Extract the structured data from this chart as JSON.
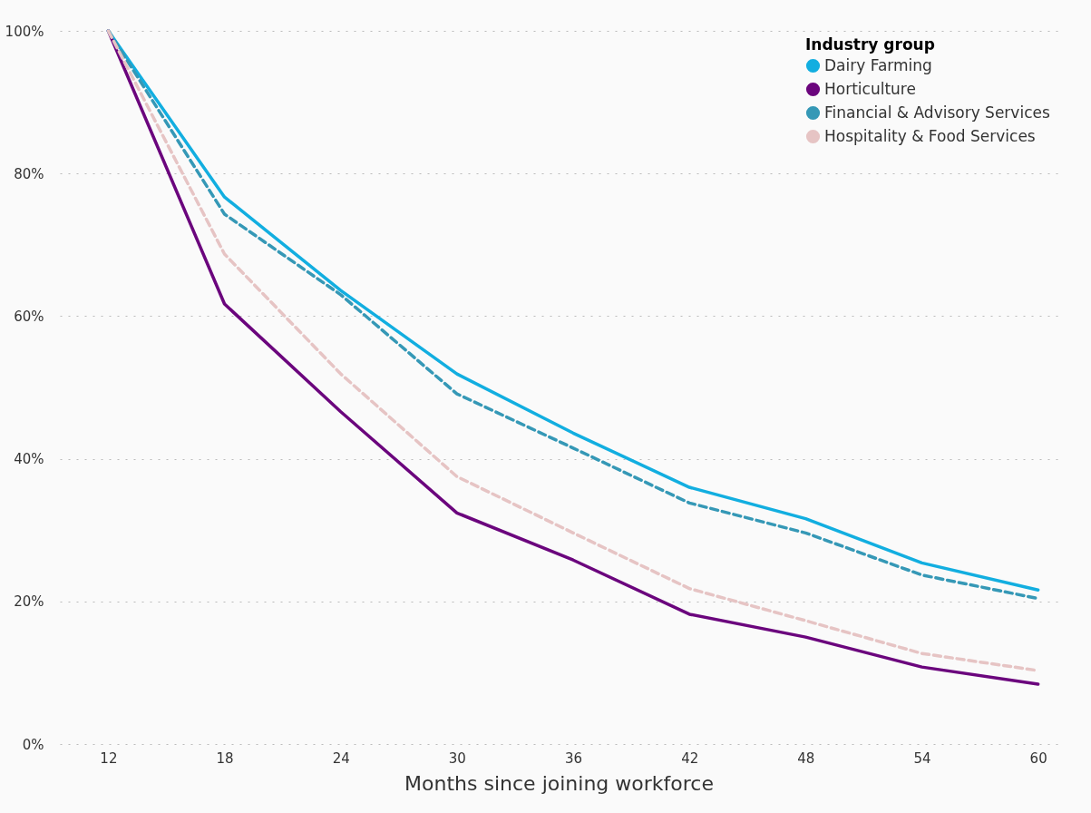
{
  "chart_data": {
    "type": "line",
    "xlabel": "Months since joining workforce",
    "legend_title": "Industry group",
    "legend": "top right",
    "grid": "y",
    "marker": "none",
    "x": [
      12,
      18,
      24,
      30,
      36,
      42,
      48,
      54,
      60
    ],
    "xlim": [
      9.5,
      61
    ],
    "xticks": [
      12,
      18,
      24,
      30,
      36,
      42,
      48,
      54,
      60
    ],
    "ylim": [
      0,
      100
    ],
    "yticks": [
      {
        "value": 0,
        "label": "0%"
      },
      {
        "value": 20,
        "label": "20%"
      },
      {
        "value": 40,
        "label": "40%"
      },
      {
        "value": 60,
        "label": "60%"
      },
      {
        "value": 80,
        "label": "80%"
      },
      {
        "value": 100,
        "label": "100%"
      }
    ],
    "series": [
      {
        "name": "Dairy Farming",
        "color": "#12aee0",
        "line_style": "solid",
        "values": [
          100,
          76.7,
          63.6,
          51.9,
          43.6,
          36.0,
          31.6,
          25.4,
          21.6
        ]
      },
      {
        "name": "Horticulture",
        "color": "#6b057d",
        "line_style": "solid",
        "values": [
          100,
          61.7,
          46.6,
          32.4,
          25.8,
          18.2,
          15.0,
          10.8,
          8.4
        ]
      },
      {
        "name": "Financial & Advisory Services",
        "color": "#3598b6",
        "line_style": "dashed",
        "values": [
          100,
          74.3,
          63.0,
          49.1,
          41.5,
          33.8,
          29.6,
          23.7,
          20.4
        ]
      },
      {
        "name": "Hospitality & Food Services",
        "color": "#e6c4c4",
        "line_style": "dashed",
        "values": [
          100,
          68.7,
          51.9,
          37.5,
          29.6,
          21.8,
          17.3,
          12.7,
          10.3
        ]
      }
    ]
  }
}
